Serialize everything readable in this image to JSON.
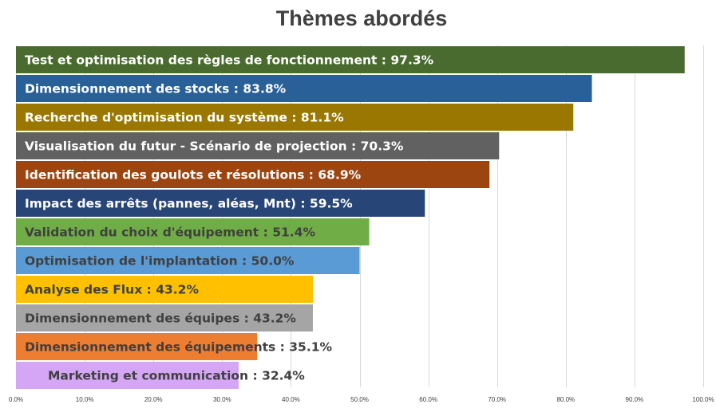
{
  "chart_data": {
    "type": "bar",
    "orientation": "horizontal",
    "title": "Thèmes abordés",
    "xlim": [
      0,
      100
    ],
    "x_tick_values": [
      0,
      10,
      20,
      30,
      40,
      50,
      60,
      70,
      80,
      90,
      100
    ],
    "x_tick_labels": [
      "0.0%",
      "10.0%",
      "20.0%",
      "30.0%",
      "40.0%",
      "50.0%",
      "60.0%",
      "70.0%",
      "80.0%",
      "90.0%",
      "100.0%"
    ],
    "grid": true,
    "legend": "none",
    "bars": [
      {
        "category": "Test et optimisation des règles de fonctionnement",
        "value": 97.3,
        "label": "Test et optimisation des règles de fonctionnement : 97.3%",
        "color": "#4a6b2f",
        "label_color": "#ffffff"
      },
      {
        "category": "Dimensionnement des stocks",
        "value": 83.8,
        "label": "Dimensionnement des stocks :  83.8%",
        "color": "#2a6098",
        "label_color": "#ffffff"
      },
      {
        "category": "Recherche d'optimisation du système",
        "value": 81.1,
        "label": "Recherche d'optimisation du système :  81.1%",
        "color": "#9a7800",
        "label_color": "#ffffff"
      },
      {
        "category": "Visualisation du futur - Scénario de projection",
        "value": 70.3,
        "label": "Visualisation du futur - Scénario de projection :  70.3%",
        "color": "#616161",
        "label_color": "#ffffff"
      },
      {
        "category": "Identification des goulots et résolutions",
        "value": 68.9,
        "label": "Identification des goulots et résolutions :  68.9%",
        "color": "#9c4511",
        "label_color": "#ffffff"
      },
      {
        "category": "Impact des arrêts (pannes, aléas, Mnt)",
        "value": 59.5,
        "label": "Impact des arrêts (pannes, aléas, Mnt) :  59.5%",
        "color": "#284578",
        "label_color": "#ffffff"
      },
      {
        "category": "Validation du choix d'équipement",
        "value": 51.4,
        "label": "Validation du choix d'équipement :  51.4%",
        "color": "#70ad47",
        "label_color": "#404040"
      },
      {
        "category": "Optimisation de l'implantation",
        "value": 50.0,
        "label": "Optimisation de l'implantation :  50.0%",
        "color": "#5b9bd5",
        "label_color": "#404040"
      },
      {
        "category": "Analyse des Flux",
        "value": 43.2,
        "label": "Analyse des Flux :  43.2%",
        "color": "#ffc000",
        "label_color": "#404040"
      },
      {
        "category": "Dimensionnement des équipes",
        "value": 43.2,
        "label": "Dimensionnement des équipes :  43.2%",
        "color": "#a5a5a5",
        "label_color": "#404040"
      },
      {
        "category": "Dimensionnement des équipements",
        "value": 35.1,
        "label": "Dimensionnement des équipements :  35.1%",
        "color": "#ed7d31",
        "label_color": "#404040"
      },
      {
        "category": "Marketing et communication",
        "value": 32.4,
        "label": "Marketing et communication :  32.4%",
        "color": "#d5a6f5",
        "label_color": "#404040"
      }
    ]
  }
}
